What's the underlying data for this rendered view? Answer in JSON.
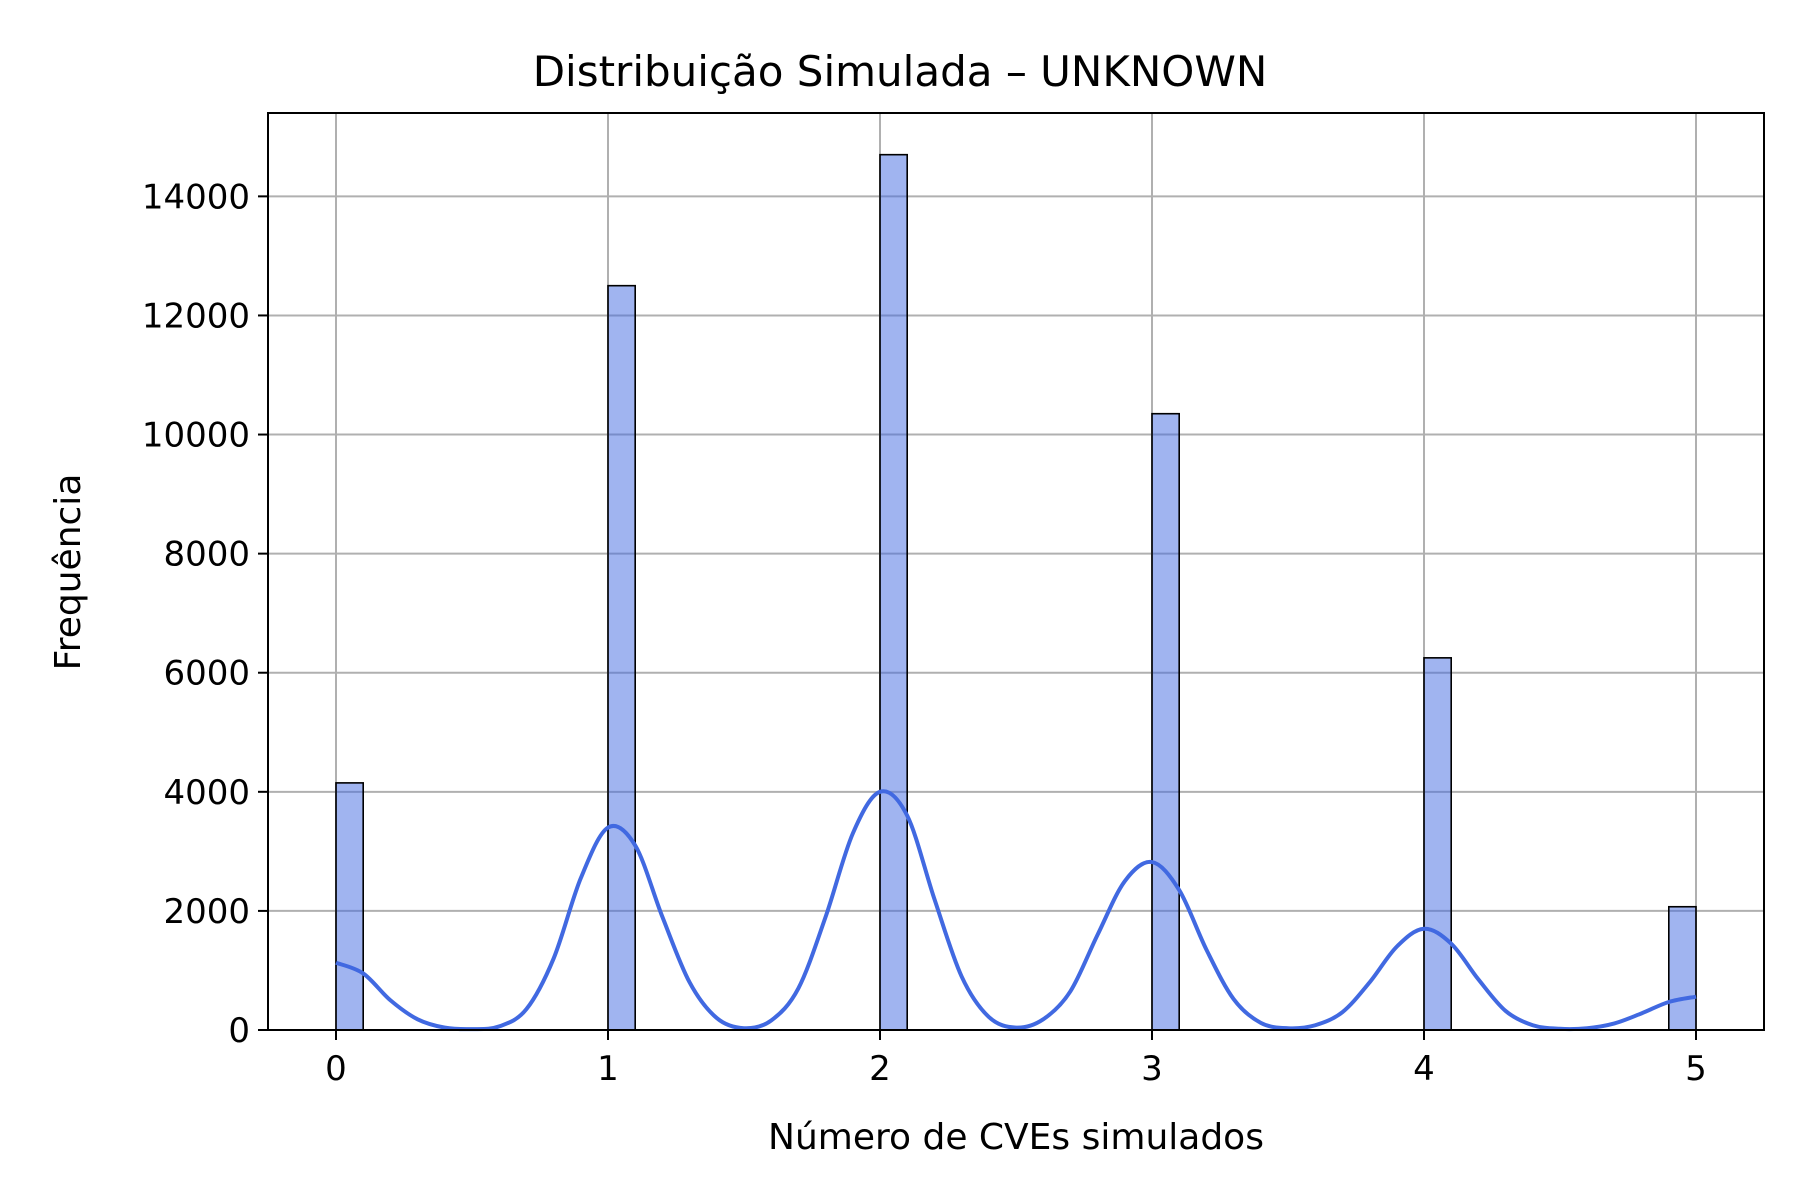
{
  "chart_data": {
    "type": "bar",
    "title": "Distribuição Simulada – UNKNOWN",
    "xlabel": "Número de CVEs simulados",
    "ylabel": "Frequência",
    "xlim": [
      -0.25,
      5.25
    ],
    "ylim": [
      0,
      15400
    ],
    "xticks": [
      0,
      1,
      2,
      3,
      4,
      5
    ],
    "yticks": [
      0,
      2000,
      4000,
      6000,
      8000,
      10000,
      12000,
      14000
    ],
    "grid": true,
    "bin_width": 0.1,
    "bars": [
      {
        "x": 0,
        "value": 4150
      },
      {
        "x": 1,
        "value": 12500
      },
      {
        "x": 2,
        "value": 14700
      },
      {
        "x": 3,
        "value": 10350
      },
      {
        "x": 4,
        "value": 6250
      },
      {
        "x": 4.9,
        "value": 2070
      }
    ],
    "kde": {
      "x": [
        0,
        0.1,
        0.2,
        0.3,
        0.4,
        0.5,
        0.6,
        0.7,
        0.8,
        0.9,
        1.0,
        1.1,
        1.2,
        1.3,
        1.4,
        1.5,
        1.6,
        1.7,
        1.8,
        1.9,
        2.0,
        2.1,
        2.2,
        2.3,
        2.4,
        2.5,
        2.6,
        2.7,
        2.8,
        2.9,
        3.0,
        3.1,
        3.2,
        3.3,
        3.4,
        3.5,
        3.6,
        3.7,
        3.8,
        3.9,
        4.0,
        4.1,
        4.2,
        4.3,
        4.4,
        4.5,
        4.6,
        4.7,
        4.8,
        4.9,
        5.0
      ],
      "y": [
        1130,
        950,
        500,
        180,
        40,
        15,
        60,
        350,
        1200,
        2550,
        3400,
        3100,
        1900,
        800,
        200,
        30,
        160,
        700,
        1900,
        3300,
        4000,
        3600,
        2200,
        900,
        220,
        40,
        180,
        650,
        1600,
        2500,
        2820,
        2350,
        1350,
        520,
        120,
        30,
        80,
        300,
        800,
        1400,
        1700,
        1450,
        850,
        320,
        80,
        20,
        30,
        110,
        280,
        470,
        560
      ]
    },
    "colors": {
      "bar": "#4169e1",
      "kde": "#4169e1"
    }
  }
}
